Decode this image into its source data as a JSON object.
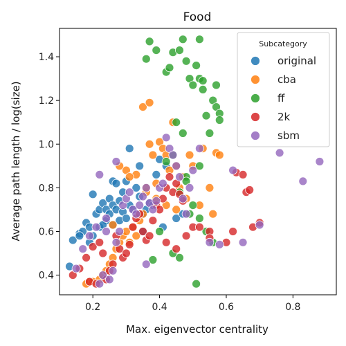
{
  "chart_data": {
    "type": "scatter",
    "title": "Food",
    "xlabel": "Max. eigenvector centrality",
    "ylabel": "Average path length / log(size)",
    "xlim": [
      0.1,
      0.93
    ],
    "ylim": [
      0.31,
      1.53
    ],
    "xticks": [
      0.2,
      0.4,
      0.6,
      0.8
    ],
    "yticks": [
      0.4,
      0.6,
      0.8,
      1.0,
      1.2,
      1.4
    ],
    "xtick_labels": [
      "0.2",
      "0.4",
      "0.6",
      "0.8"
    ],
    "ytick_labels": [
      "0.4",
      "0.6",
      "0.8",
      "1.0",
      "1.2",
      "1.4"
    ],
    "grid": false,
    "legend": {
      "title": "Subcategory",
      "placement": "top-right"
    },
    "series": [
      {
        "name": "original",
        "color": "#1f77b4",
        "x": [
          0.13,
          0.14,
          0.16,
          0.17,
          0.18,
          0.19,
          0.19,
          0.2,
          0.21,
          0.22,
          0.22,
          0.23,
          0.24,
          0.24,
          0.25,
          0.25,
          0.26,
          0.26,
          0.27,
          0.27,
          0.28,
          0.28,
          0.29,
          0.29,
          0.3,
          0.31,
          0.31,
          0.32,
          0.33,
          0.34,
          0.34,
          0.35,
          0.36,
          0.37,
          0.38,
          0.39,
          0.4,
          0.42,
          0.45,
          0.47,
          0.16,
          0.2,
          0.23,
          0.26,
          0.3,
          0.35,
          0.41
        ],
        "y": [
          0.44,
          0.56,
          0.59,
          0.6,
          0.64,
          0.55,
          0.62,
          0.77,
          0.68,
          0.62,
          0.7,
          0.73,
          0.65,
          0.7,
          0.68,
          0.75,
          0.72,
          0.83,
          0.7,
          0.82,
          0.65,
          0.74,
          0.69,
          0.78,
          0.83,
          0.98,
          0.72,
          0.7,
          0.8,
          0.76,
          0.9,
          0.68,
          0.7,
          0.73,
          0.72,
          0.86,
          0.93,
          0.9,
          0.66,
          0.68,
          0.58,
          0.58,
          0.63,
          0.63,
          0.66,
          0.6,
          0.62
        ]
      },
      {
        "name": "cba",
        "color": "#ff7f0e",
        "x": [
          0.18,
          0.19,
          0.2,
          0.22,
          0.23,
          0.24,
          0.25,
          0.26,
          0.27,
          0.28,
          0.29,
          0.3,
          0.31,
          0.32,
          0.33,
          0.34,
          0.35,
          0.35,
          0.36,
          0.37,
          0.37,
          0.38,
          0.39,
          0.4,
          0.41,
          0.42,
          0.43,
          0.44,
          0.45,
          0.46,
          0.47,
          0.48,
          0.49,
          0.5,
          0.52,
          0.53,
          0.55,
          0.56,
          0.57,
          0.58,
          0.3,
          0.33,
          0.36,
          0.39,
          0.42,
          0.45,
          0.28,
          0.31,
          0.26
        ],
        "y": [
          0.36,
          0.37,
          0.37,
          0.38,
          0.4,
          0.42,
          0.45,
          0.48,
          0.52,
          0.55,
          0.58,
          0.6,
          0.55,
          0.62,
          0.58,
          0.65,
          0.68,
          1.17,
          0.78,
          1.19,
          1.0,
          0.95,
          0.82,
          1.01,
          0.98,
          0.95,
          0.88,
          1.1,
          0.9,
          0.8,
          0.85,
          0.75,
          0.95,
          0.9,
          0.72,
          0.98,
          0.8,
          0.68,
          0.96,
          0.95,
          0.88,
          0.86,
          0.8,
          0.75,
          0.72,
          0.7,
          0.9,
          0.85,
          0.63
        ]
      },
      {
        "name": "ff",
        "color": "#2ca02c",
        "x": [
          0.36,
          0.37,
          0.39,
          0.42,
          0.43,
          0.44,
          0.45,
          0.46,
          0.47,
          0.47,
          0.48,
          0.49,
          0.5,
          0.51,
          0.52,
          0.52,
          0.53,
          0.53,
          0.54,
          0.55,
          0.56,
          0.57,
          0.57,
          0.58,
          0.58,
          0.42,
          0.44,
          0.46,
          0.48,
          0.5,
          0.52,
          0.54,
          0.56,
          0.46,
          0.49,
          0.51,
          0.4,
          0.38,
          0.44,
          0.48,
          0.52
        ],
        "y": [
          1.39,
          1.47,
          1.43,
          1.33,
          1.35,
          1.42,
          1.1,
          1.43,
          1.48,
          1.05,
          1.38,
          1.3,
          1.27,
          1.36,
          1.48,
          1.3,
          1.25,
          1.29,
          1.13,
          1.05,
          1.2,
          1.27,
          1.17,
          1.14,
          1.11,
          0.92,
          0.95,
          0.78,
          0.85,
          0.72,
          0.66,
          0.6,
          0.55,
          0.48,
          0.68,
          0.36,
          0.6,
          0.47,
          0.5,
          0.83,
          0.9
        ]
      },
      {
        "name": "2k",
        "color": "#d62728",
        "x": [
          0.14,
          0.16,
          0.18,
          0.19,
          0.2,
          0.21,
          0.22,
          0.23,
          0.24,
          0.25,
          0.26,
          0.27,
          0.28,
          0.29,
          0.3,
          0.31,
          0.32,
          0.33,
          0.34,
          0.35,
          0.36,
          0.37,
          0.38,
          0.39,
          0.4,
          0.41,
          0.42,
          0.43,
          0.44,
          0.45,
          0.46,
          0.47,
          0.5,
          0.55,
          0.6,
          0.62,
          0.63,
          0.65,
          0.66,
          0.67,
          0.68,
          0.7,
          0.42,
          0.45,
          0.48,
          0.52,
          0.55
        ],
        "y": [
          0.4,
          0.43,
          0.48,
          0.37,
          0.53,
          0.36,
          0.55,
          0.5,
          0.38,
          0.42,
          0.45,
          0.58,
          0.52,
          0.48,
          0.5,
          0.54,
          0.62,
          0.66,
          0.68,
          0.6,
          0.56,
          0.58,
          0.65,
          0.72,
          0.7,
          0.75,
          0.8,
          0.85,
          0.78,
          0.82,
          0.77,
          0.74,
          0.62,
          0.6,
          0.55,
          0.6,
          0.87,
          0.86,
          0.78,
          0.79,
          0.62,
          0.64,
          0.55,
          0.52,
          0.58,
          0.62,
          0.57
        ]
      },
      {
        "name": "sbm",
        "color": "#9467bd",
        "x": [
          0.15,
          0.17,
          0.19,
          0.21,
          0.22,
          0.23,
          0.24,
          0.25,
          0.26,
          0.27,
          0.28,
          0.29,
          0.3,
          0.31,
          0.32,
          0.33,
          0.34,
          0.35,
          0.36,
          0.37,
          0.38,
          0.39,
          0.4,
          0.41,
          0.42,
          0.43,
          0.44,
          0.45,
          0.46,
          0.47,
          0.48,
          0.49,
          0.5,
          0.52,
          0.55,
          0.58,
          0.62,
          0.65,
          0.7,
          0.76,
          0.83,
          0.88,
          0.22,
          0.24,
          0.27,
          0.36
        ],
        "y": [
          0.43,
          0.52,
          0.58,
          0.62,
          0.36,
          0.4,
          0.66,
          0.38,
          0.42,
          0.55,
          0.6,
          0.72,
          0.75,
          0.78,
          0.7,
          0.68,
          0.72,
          0.76,
          0.8,
          0.73,
          0.7,
          0.74,
          0.8,
          0.82,
          1.03,
          0.98,
          0.95,
          0.9,
          0.85,
          0.75,
          0.68,
          0.8,
          0.88,
          0.98,
          0.55,
          0.54,
          0.88,
          0.55,
          0.63,
          0.96,
          0.83,
          0.92,
          0.86,
          0.6,
          0.92,
          0.45
        ]
      }
    ]
  }
}
